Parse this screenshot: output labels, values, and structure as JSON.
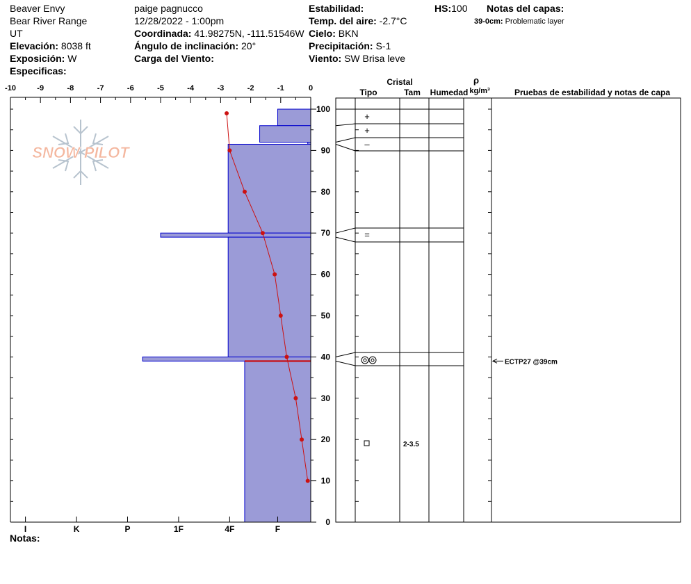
{
  "header": {
    "location": "Beaver Envy",
    "range": "Bear River Range",
    "state": "UT",
    "elevation_label": "Elevación:",
    "elevation_value": "8038 ft",
    "aspect_label": "Exposición:",
    "aspect_value": "W",
    "specifics_label": "Especificas:",
    "observer": "paige pagnucco",
    "datetime": "12/28/2022 - 1:00pm",
    "coord_label": "Coordinada:",
    "coord_value": "41.98275N, -111.51546W",
    "slope_label": "Ángulo de inclinación:",
    "slope_value": "20°",
    "wind_load_label": "Carga del Viento:",
    "stability_label": "Estabilidad:",
    "air_temp_label": "Temp. del aire:",
    "air_temp_value": "-2.7°C",
    "sky_label": "Cielo:",
    "sky_value": "BKN",
    "precip_label": "Precipitación:",
    "precip_value": "S-1",
    "wind_label": "Viento:",
    "wind_value": "SW  Brisa leve",
    "hs_label": "HS:",
    "hs_value": "100",
    "layer_notes_label": "Notas del capas:",
    "layer_note_range": "39-0cm:",
    "layer_note_text": "Problematic layer",
    "notes_label": "Notas:"
  },
  "logo": {
    "text": "SNOW PILOT"
  },
  "columns": {
    "crystal": "Cristal",
    "type": "Tipo",
    "size": "Tam",
    "moisture": "Humedad",
    "rho": "ρ",
    "density_unit": "kg/m³",
    "tests": "Pruebas de estabilidad y notas de capa"
  },
  "colors": {
    "hardness_fill": "#9b9bd7",
    "hardness_stroke": "#0000cc",
    "temp_line": "#cc1111",
    "layer_mark": "#cc0000"
  },
  "chart_data": {
    "type": "snow_profile",
    "temperature_axis": {
      "min": -10,
      "max": 0,
      "ticks": [
        -10,
        -9,
        -8,
        -7,
        -6,
        -5,
        -4,
        -3,
        -2,
        -1,
        0
      ]
    },
    "height_axis": {
      "min": 0,
      "max": 100,
      "ticks": [
        0,
        10,
        20,
        30,
        40,
        50,
        60,
        70,
        80,
        90,
        100
      ]
    },
    "hardness_scale": [
      {
        "label": "I",
        "temp": -9.5
      },
      {
        "label": "K",
        "temp": -7.8
      },
      {
        "label": "P",
        "temp": -6.1
      },
      {
        "label": "1F",
        "temp": -4.4
      },
      {
        "label": "4F",
        "temp": -2.7
      },
      {
        "label": "F",
        "temp": -1.1
      }
    ],
    "hardness_layers": [
      {
        "bottom": 96,
        "top": 100,
        "hardness_temp": -1.1
      },
      {
        "bottom": 92,
        "top": 96,
        "hardness_temp": -1.7
      },
      {
        "bottom": 91.5,
        "top": 92,
        "hardness_temp": -0.1
      },
      {
        "bottom": 70,
        "top": 91.5,
        "hardness_temp": -2.75
      },
      {
        "bottom": 69,
        "top": 70,
        "hardness_temp": -5.0
      },
      {
        "bottom": 40,
        "top": 69,
        "hardness_temp": -2.75
      },
      {
        "bottom": 39,
        "top": 40,
        "hardness_temp": -5.6
      },
      {
        "bottom": 0,
        "top": 39,
        "hardness_temp": -2.2
      }
    ],
    "temperature_profile": [
      {
        "height": 99,
        "temp": -2.8
      },
      {
        "height": 90,
        "temp": -2.7
      },
      {
        "height": 80,
        "temp": -2.2
      },
      {
        "height": 70,
        "temp": -1.6
      },
      {
        "height": 60,
        "temp": -1.2
      },
      {
        "height": 50,
        "temp": -1.0
      },
      {
        "height": 40,
        "temp": -0.8
      },
      {
        "height": 30,
        "temp": -0.5
      },
      {
        "height": 20,
        "temp": -0.3
      },
      {
        "height": 10,
        "temp": -0.1
      }
    ],
    "weak_layer_height": 39,
    "layer_boundaries": [
      100,
      96,
      92,
      91.5,
      70,
      69,
      40,
      39,
      0
    ],
    "crystals": [
      {
        "height": 98,
        "symbol": "+",
        "size": ""
      },
      {
        "height": 94,
        "symbol": "+",
        "size": ""
      },
      {
        "height": 91.7,
        "symbol": "–",
        "size": ""
      },
      {
        "height": 69.5,
        "symbol": "=",
        "size": ""
      },
      {
        "height": 39.5,
        "symbol": "◎◎",
        "size": ""
      },
      {
        "height": 19.5,
        "symbol": "□",
        "size": "2-3.5"
      }
    ],
    "tests": [
      {
        "height": 39,
        "label": "ECTP27 @39cm"
      }
    ]
  }
}
